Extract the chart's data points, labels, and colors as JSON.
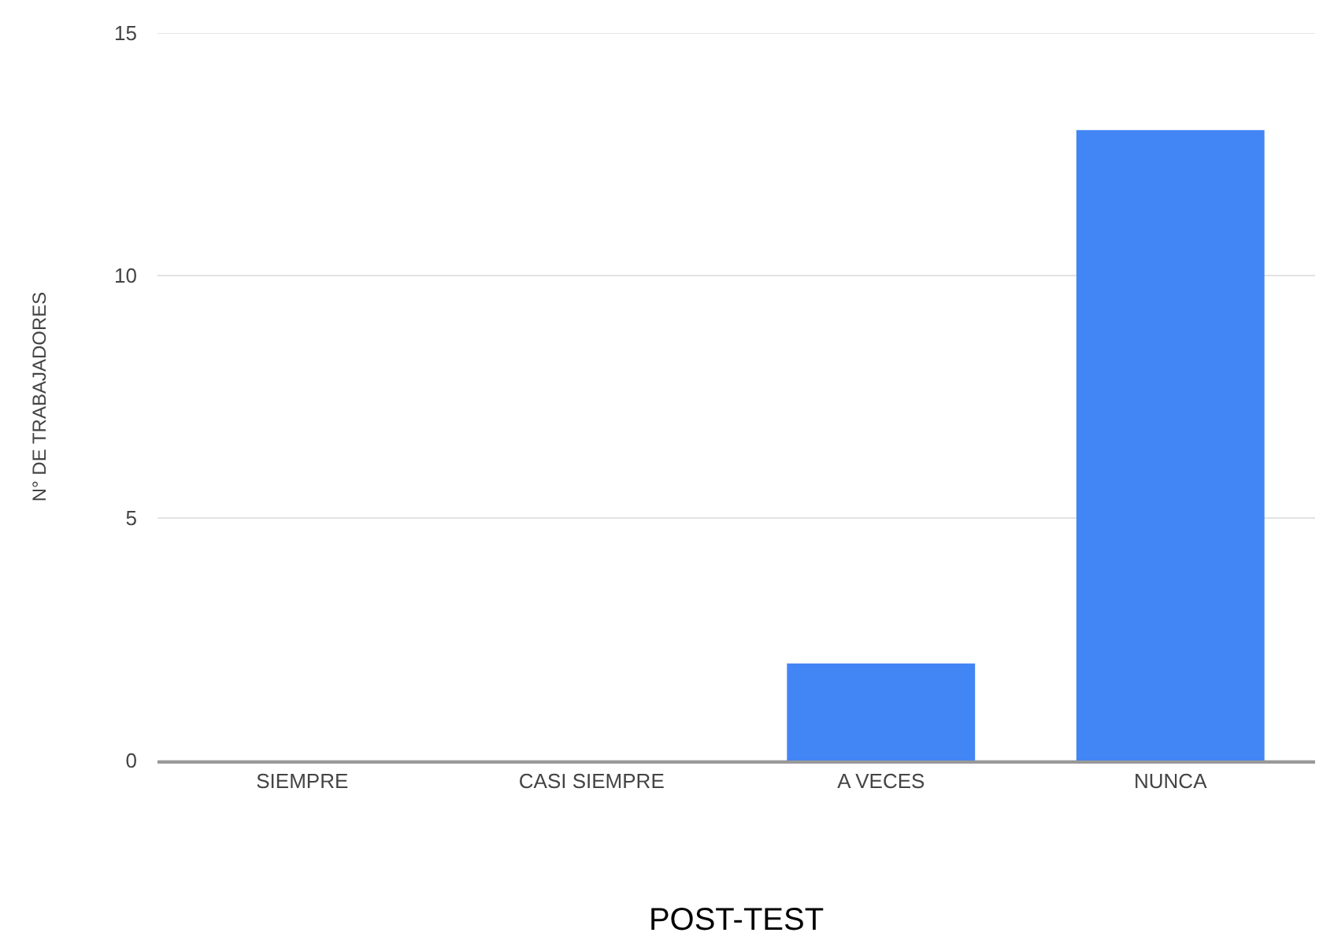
{
  "chart_data": {
    "type": "bar",
    "categories": [
      "SIEMPRE",
      "CASI SIEMPRE",
      "A VECES",
      "NUNCA"
    ],
    "values": [
      0,
      0,
      2,
      13
    ],
    "color": "#4285f4",
    "xlabel": "POST-TEST",
    "ylabel": "N° DE TRABAJADORES",
    "ylim": [
      0,
      15
    ],
    "yticks": [
      0,
      5,
      10,
      15
    ],
    "grid": "y"
  }
}
